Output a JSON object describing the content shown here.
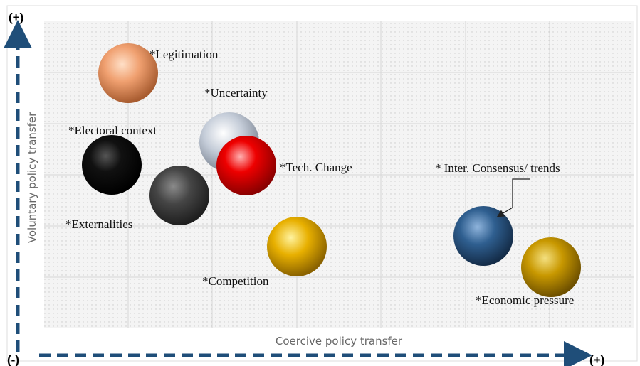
{
  "axes": {
    "y_label": "Voluntary policy transfer",
    "x_label": "Coercive policy transfer",
    "y_plus": "(+)",
    "origin_minus": "(-)",
    "x_plus": "(+)"
  },
  "nodes": [
    {
      "label": "*Legitimation"
    },
    {
      "label": "*Uncertainty"
    },
    {
      "label": "*Electoral context"
    },
    {
      "label": "*Tech. Change"
    },
    {
      "label": "*Externalities"
    },
    {
      "label": "*Competition"
    },
    {
      "label": "* Inter. Consensus/ trends"
    },
    {
      "label": "*Economic pressure"
    }
  ]
}
